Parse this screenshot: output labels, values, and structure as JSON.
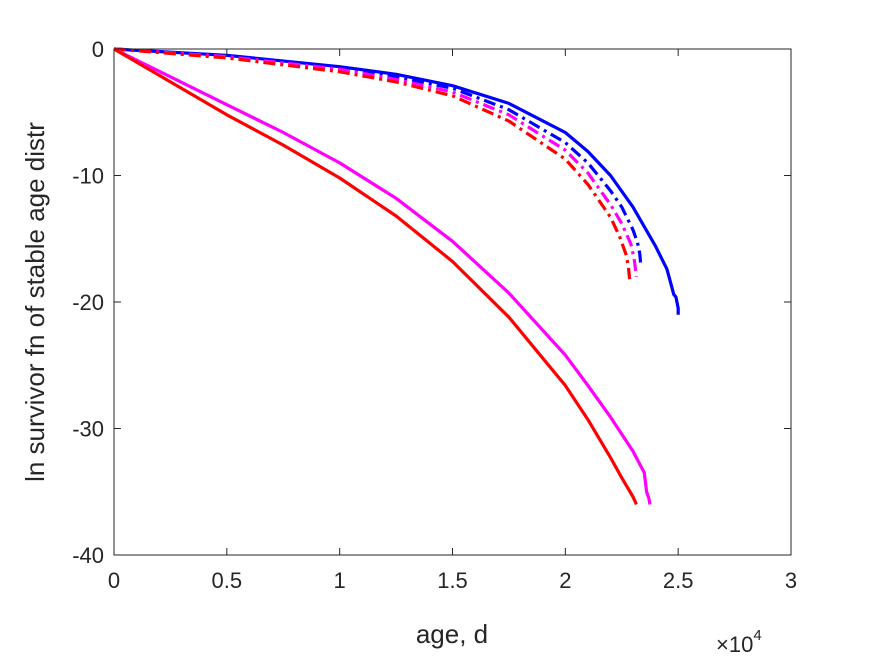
{
  "chart_data": {
    "type": "line",
    "xlabel": "age, d",
    "ylabel": "ln survivor fn of stable age distr",
    "x_multiplier_label": "10",
    "x_multiplier_exponent": "4",
    "xlim": [
      0,
      30000
    ],
    "ylim": [
      -40,
      0
    ],
    "xticks": [
      0,
      5000,
      10000,
      15000,
      20000,
      25000,
      30000
    ],
    "xtick_labels": [
      "0",
      "0.5",
      "1",
      "1.5",
      "2",
      "2.5",
      "3"
    ],
    "yticks": [
      -40,
      -30,
      -20,
      -10,
      0
    ],
    "ytick_labels": [
      "-40",
      "-30",
      "-20",
      "-10",
      "0"
    ],
    "grid": false,
    "series": [
      {
        "color": "#0000ff",
        "style": "solid",
        "x": [
          0,
          5000,
          10000,
          12500,
          15000,
          17500,
          20000,
          21000,
          22000,
          23000,
          24000,
          24500,
          24700,
          24800,
          24900,
          25000,
          25000
        ],
        "y": [
          0,
          -0.5,
          -1.4,
          -2.0,
          -2.9,
          -4.3,
          -6.6,
          -8.1,
          -10.0,
          -12.5,
          -15.6,
          -17.4,
          -18.7,
          -19.4,
          -19.6,
          -20.5,
          -21.0
        ]
      },
      {
        "color": "#0000ff",
        "style": "dashdot",
        "x": [
          0,
          5000,
          10000,
          12500,
          15000,
          17500,
          20000,
          21000,
          22000,
          22500,
          23000,
          23200,
          23300,
          23350
        ],
        "y": [
          0,
          -0.55,
          -1.5,
          -2.2,
          -3.1,
          -4.8,
          -7.4,
          -9.0,
          -11.2,
          -12.5,
          -14.3,
          -15.3,
          -16.2,
          -17.2
        ]
      },
      {
        "color": "#ff00ff",
        "style": "dashdot",
        "x": [
          0,
          5000,
          10000,
          12500,
          15000,
          17500,
          20000,
          21000,
          22000,
          22500,
          22900,
          23050,
          23150
        ],
        "y": [
          0,
          -0.6,
          -1.6,
          -2.4,
          -3.4,
          -5.2,
          -8.0,
          -9.8,
          -12.3,
          -13.8,
          -15.4,
          -16.6,
          -18.0
        ]
      },
      {
        "color": "#ff0000",
        "style": "dashdot",
        "x": [
          0,
          5000,
          10000,
          12500,
          15000,
          17500,
          20000,
          21000,
          22000,
          22400,
          22700,
          22800,
          22850
        ],
        "y": [
          0,
          -0.7,
          -1.8,
          -2.6,
          -3.7,
          -5.7,
          -8.7,
          -10.7,
          -13.3,
          -14.8,
          -16.3,
          -17.3,
          -18.2
        ]
      },
      {
        "color": "#ff00ff",
        "style": "solid",
        "x": [
          0,
          2500,
          5000,
          7500,
          10000,
          12500,
          15000,
          17500,
          20000,
          21000,
          22000,
          23000,
          23500,
          23600,
          23700,
          23750
        ],
        "y": [
          0,
          -2.2,
          -4.4,
          -6.6,
          -9.0,
          -11.8,
          -15.2,
          -19.3,
          -24.2,
          -26.6,
          -29.1,
          -31.8,
          -33.5,
          -35.0,
          -35.5,
          -36.0
        ]
      },
      {
        "color": "#ff0000",
        "style": "solid",
        "x": [
          0,
          2500,
          5000,
          7500,
          10000,
          12500,
          15000,
          17500,
          20000,
          21000,
          22000,
          22500,
          23000,
          23150
        ],
        "y": [
          0,
          -2.6,
          -5.2,
          -7.6,
          -10.2,
          -13.2,
          -16.8,
          -21.2,
          -26.6,
          -29.3,
          -32.3,
          -33.9,
          -35.4,
          -36.0
        ]
      }
    ]
  }
}
